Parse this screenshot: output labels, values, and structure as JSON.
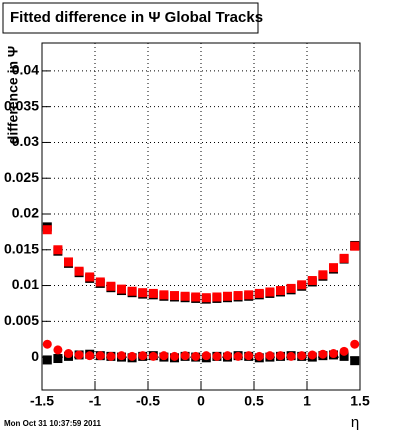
{
  "chart_data": {
    "type": "scatter",
    "title": "Fitted difference in  Ψ  Global Tracks",
    "y_label": "difference in Ψ",
    "x_label": "η",
    "footer": "Mon Oct 31 10:37:59 2011",
    "x": [
      -1.45,
      -1.35,
      -1.25,
      -1.15,
      -1.05,
      -0.95,
      -0.85,
      -0.75,
      -0.65,
      -0.55,
      -0.45,
      -0.35,
      -0.25,
      -0.15,
      -0.05,
      0.05,
      0.15,
      0.25,
      0.35,
      0.45,
      0.55,
      0.65,
      0.75,
      0.85,
      0.95,
      1.05,
      1.15,
      1.25,
      1.35,
      1.45
    ],
    "series": [
      {
        "color": "#000000",
        "marker": "square",
        "values": [
          0.0182,
          0.0148,
          0.0131,
          0.0118,
          0.011,
          0.0103,
          0.0097,
          0.0093,
          0.009,
          0.0088,
          0.0087,
          0.0085,
          0.0084,
          0.0083,
          0.0082,
          0.0081,
          0.0082,
          0.0083,
          0.0084,
          0.0085,
          0.0087,
          0.0089,
          0.0091,
          0.0094,
          0.0099,
          0.0105,
          0.0113,
          0.0123,
          0.0137,
          0.0156
        ]
      },
      {
        "color": "#ff0000",
        "marker": "square",
        "values": [
          0.0178,
          0.015,
          0.0133,
          0.012,
          0.0112,
          0.0105,
          0.0099,
          0.0095,
          0.0092,
          0.009,
          0.0089,
          0.0087,
          0.0086,
          0.0085,
          0.0084,
          0.0083,
          0.0084,
          0.0085,
          0.0086,
          0.0087,
          0.0089,
          0.0091,
          0.0093,
          0.0096,
          0.0101,
          0.0107,
          0.0115,
          0.0125,
          0.0138,
          0.0155
        ]
      },
      {
        "color": "#000000",
        "marker": "square",
        "values": [
          -0.0004,
          -0.0002,
          0.0001,
          0.0003,
          0.0004,
          0.0002,
          0.0001,
          0.0,
          -0.0001,
          0.0001,
          0.0002,
          0.0,
          -0.0001,
          0.0001,
          0.0,
          -0.0001,
          0.0001,
          0.0,
          0.0002,
          0.0001,
          -0.0001,
          0.0,
          0.0001,
          0.0002,
          0.0001,
          0.0,
          0.0002,
          0.0003,
          0.0001,
          -0.0005
        ]
      },
      {
        "color": "#ff0000",
        "marker": "circle",
        "values": [
          0.0018,
          0.001,
          0.0005,
          0.0003,
          0.0002,
          0.0002,
          0.0001,
          0.0002,
          0.0001,
          0.0002,
          0.0001,
          0.0002,
          0.0001,
          0.0002,
          0.0001,
          0.0002,
          0.0001,
          0.0002,
          0.0001,
          0.0002,
          0.0001,
          0.0002,
          0.0002,
          0.0001,
          0.0002,
          0.0003,
          0.0004,
          0.0005,
          0.0008,
          0.0018
        ]
      }
    ],
    "xlim": [
      -1.5,
      1.5
    ],
    "ylim": [
      -0.0046,
      0.0439
    ],
    "xticks": [
      -1.5,
      -1,
      -0.5,
      0,
      0.5,
      1,
      1.5
    ],
    "yticks": [
      0,
      0.005,
      0.01,
      0.015,
      0.02,
      0.025,
      0.03,
      0.035,
      0.04
    ],
    "grid": true
  }
}
